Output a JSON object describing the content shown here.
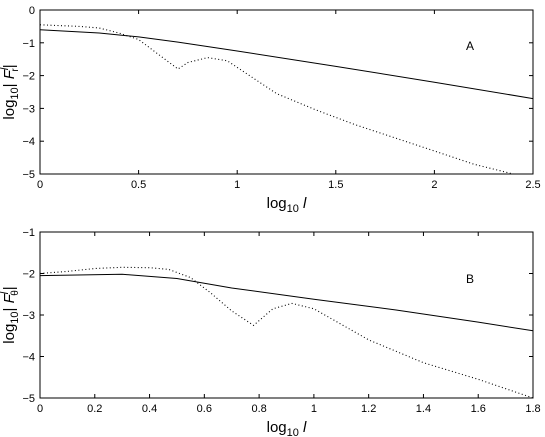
{
  "chart_data": [
    {
      "type": "line",
      "panel_label": "A",
      "xlabel": {
        "main": "log",
        "sub": "10",
        "var": "l"
      },
      "ylabel": {
        "main": "log",
        "sub": "10",
        "pre": "|",
        "var": "F",
        "sup": "l",
        "varsub": "r",
        "post": "|"
      },
      "xlim": [
        0,
        2.5
      ],
      "ylim": [
        -5,
        0
      ],
      "xticks": [
        0,
        0.5,
        1,
        1.5,
        2,
        2.5
      ],
      "xtick_labels": [
        "0",
        "0.5",
        "1",
        "1.5",
        "2",
        "2.5"
      ],
      "yticks": [
        -5,
        -4,
        -3,
        -2,
        -1,
        0
      ],
      "ytick_labels": [
        "−5",
        "−4",
        "−3",
        "−2",
        "−1",
        "0"
      ],
      "grid": false,
      "series": [
        {
          "style": "solid",
          "color": "#000000",
          "x": [
            0,
            0.3,
            0.5,
            0.7,
            1.0,
            1.5,
            2.0,
            2.5
          ],
          "y": [
            -0.6,
            -0.7,
            -0.82,
            -0.98,
            -1.25,
            -1.72,
            -2.2,
            -2.7
          ]
        },
        {
          "style": "dotted",
          "color": "#000000",
          "x": [
            0,
            0.2,
            0.3,
            0.4,
            0.5,
            0.6,
            0.7,
            0.75,
            0.85,
            0.95,
            1.0,
            1.2,
            1.4,
            1.6,
            1.8,
            2.0,
            2.2,
            2.4
          ],
          "y": [
            -0.45,
            -0.5,
            -0.55,
            -0.7,
            -0.9,
            -1.35,
            -1.8,
            -1.6,
            -1.45,
            -1.55,
            -1.75,
            -2.55,
            -3.05,
            -3.5,
            -3.9,
            -4.3,
            -4.7,
            -5.0
          ]
        }
      ]
    },
    {
      "type": "line",
      "panel_label": "B",
      "xlabel": {
        "main": "log",
        "sub": "10",
        "var": "l"
      },
      "ylabel": {
        "main": "log",
        "sub": "10",
        "pre": "|",
        "var": "F",
        "sup": "l",
        "varsub": "θ",
        "post": "|"
      },
      "xlim": [
        0,
        1.8
      ],
      "ylim": [
        -5,
        -1
      ],
      "xticks": [
        0,
        0.2,
        0.4,
        0.6,
        0.8,
        1.0,
        1.2,
        1.4,
        1.6,
        1.8
      ],
      "xtick_labels": [
        "0",
        "0.2",
        "0.4",
        "0.6",
        "0.8",
        "1",
        "1.2",
        "1.4",
        "1.6",
        "1.8"
      ],
      "yticks": [
        -5,
        -4,
        -3,
        -2,
        -1
      ],
      "ytick_labels": [
        "−5",
        "−4",
        "−3",
        "−2",
        "−1"
      ],
      "grid": false,
      "series": [
        {
          "style": "solid",
          "color": "#000000",
          "x": [
            0,
            0.3,
            0.5,
            0.7,
            1.0,
            1.3,
            1.6,
            1.8
          ],
          "y": [
            -2.05,
            -2.02,
            -2.12,
            -2.35,
            -2.62,
            -2.88,
            -3.17,
            -3.38
          ]
        },
        {
          "style": "dotted",
          "color": "#000000",
          "x": [
            0,
            0.1,
            0.2,
            0.3,
            0.4,
            0.47,
            0.55,
            0.62,
            0.7,
            0.78,
            0.85,
            0.92,
            1.0,
            1.2,
            1.4,
            1.6,
            1.8
          ],
          "y": [
            -2.0,
            -1.95,
            -1.88,
            -1.85,
            -1.86,
            -1.9,
            -2.1,
            -2.45,
            -2.9,
            -3.25,
            -2.85,
            -2.72,
            -2.85,
            -3.6,
            -4.15,
            -4.55,
            -5.0
          ]
        }
      ]
    }
  ]
}
